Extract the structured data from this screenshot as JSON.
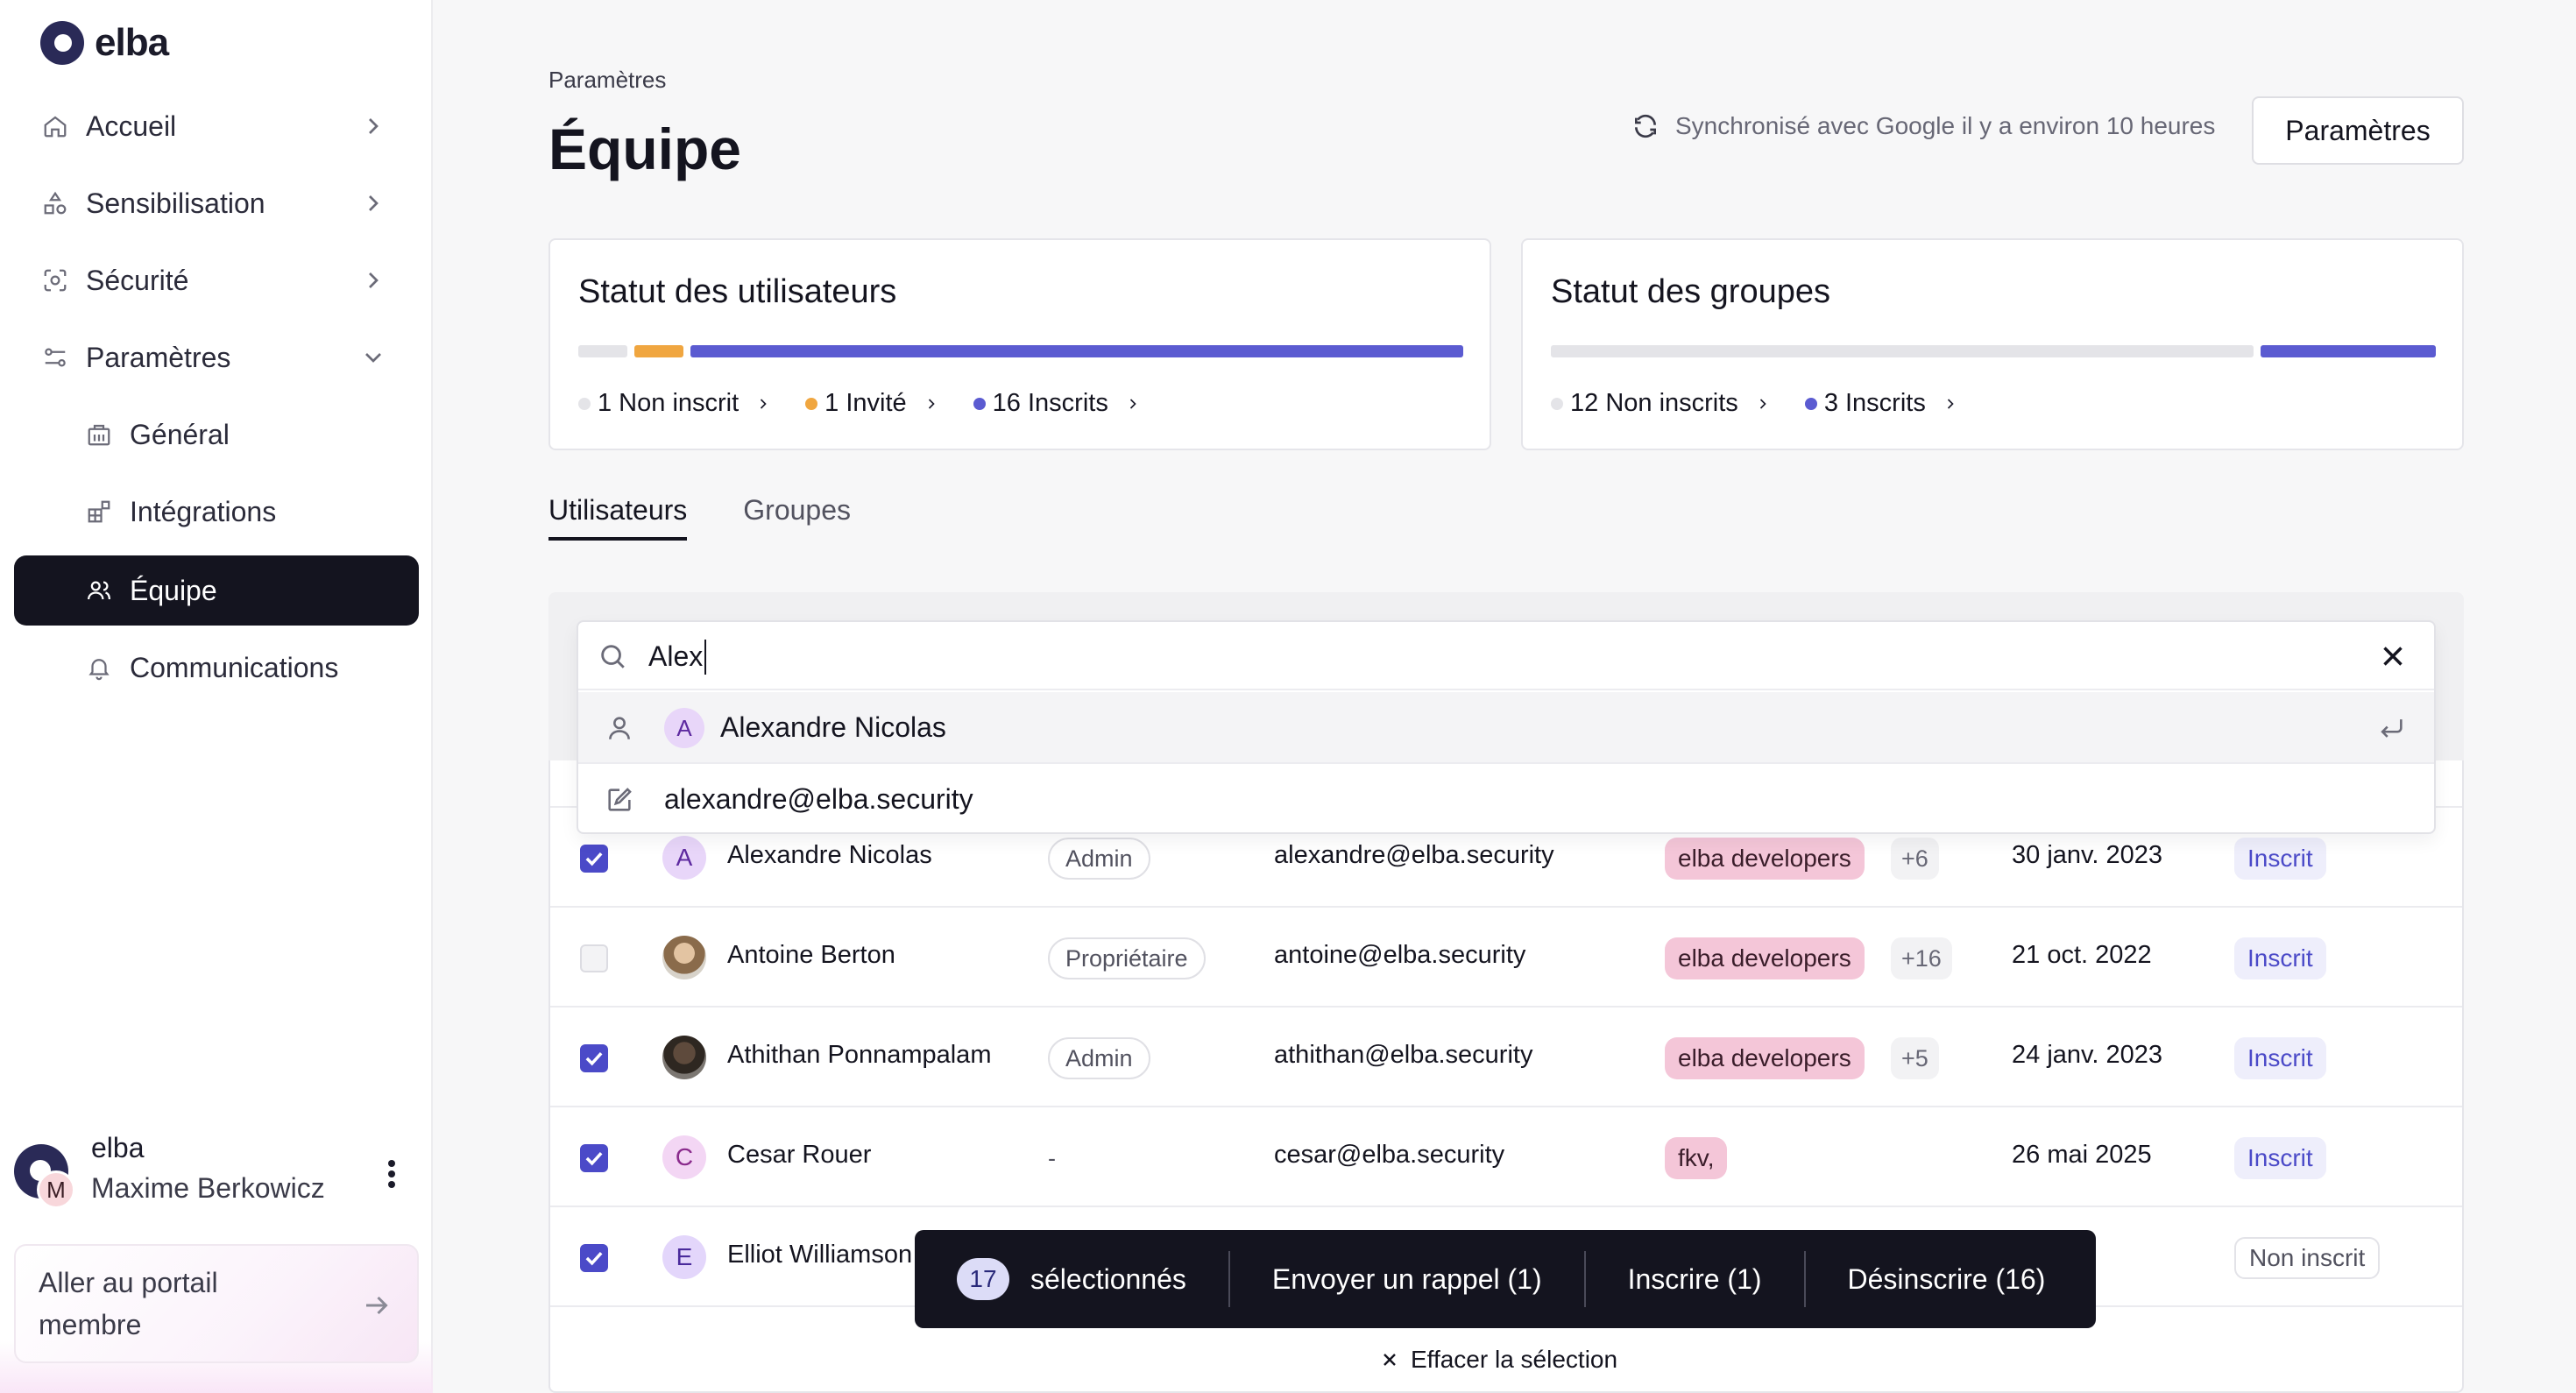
{
  "brand": {
    "name": "elba"
  },
  "sidebar": {
    "items": [
      {
        "label": "Accueil",
        "icon": "home-icon"
      },
      {
        "label": "Sensibilisation",
        "icon": "shapes-icon"
      },
      {
        "label": "Sécurité",
        "icon": "scan-icon"
      },
      {
        "label": "Paramètres",
        "icon": "sliders-icon",
        "expanded": true
      },
      {
        "label": "Général",
        "icon": "building-icon"
      },
      {
        "label": "Intégrations",
        "icon": "blocks-icon"
      },
      {
        "label": "Équipe",
        "icon": "users-icon",
        "active": true
      },
      {
        "label": "Communications",
        "icon": "bell-icon"
      }
    ],
    "user": {
      "org": "elba",
      "name": "Maxime Berkowicz",
      "initial": "M"
    },
    "portal": {
      "label": "Aller au portail membre"
    }
  },
  "header": {
    "breadcrumb": "Paramètres",
    "title": "Équipe",
    "sync_text": "Synchronisé avec Google il y a environ 10 heures",
    "settings_button": "Paramètres"
  },
  "user_status": {
    "title": "Statut des utilisateurs",
    "segments": [
      {
        "label": "1 Non inscrit",
        "count": 1,
        "color": "#e4e4e8"
      },
      {
        "label": "1 Invité",
        "count": 1,
        "color": "#f0a640"
      },
      {
        "label": "16 Inscrits",
        "count": 16,
        "color": "#5b5bd1"
      }
    ]
  },
  "group_status": {
    "title": "Statut des groupes",
    "segments": [
      {
        "label": "12 Non inscrits",
        "count": 12,
        "color": "#e4e4e8"
      },
      {
        "label": "3 Inscrits",
        "count": 3,
        "color": "#5b5bd1"
      }
    ]
  },
  "tabs": [
    {
      "label": "Utilisateurs",
      "active": true
    },
    {
      "label": "Groupes",
      "active": false
    }
  ],
  "search": {
    "value": "Alex",
    "suggestions": [
      {
        "initial": "A",
        "label": "Alexandre Nicolas"
      },
      {
        "label": "alexandre@elba.security"
      }
    ]
  },
  "users": [
    {
      "initial": "A",
      "name": "Alexandre Nicolas",
      "role": "Admin",
      "email": "alexandre@elba.security",
      "group": "elba developers",
      "more": "+6",
      "date": "30 janv. 2023",
      "status": "Inscrit",
      "checked": true
    },
    {
      "initial": "",
      "name": "Antoine Berton",
      "role": "Propriétaire",
      "email": "antoine@elba.security",
      "group": "elba developers",
      "more": "+16",
      "date": "21 oct. 2022",
      "status": "Inscrit",
      "checked": false
    },
    {
      "initial": "",
      "name": "Athithan Ponnampalam",
      "role": "Admin",
      "email": "athithan@elba.security",
      "group": "elba developers",
      "more": "+5",
      "date": "24 janv. 2023",
      "status": "Inscrit",
      "checked": true
    },
    {
      "initial": "C",
      "name": "Cesar Rouer",
      "role": "-",
      "email": "cesar@elba.security",
      "group": "fkv,",
      "more": "",
      "date": "26 mai 2025",
      "status": "Inscrit",
      "checked": true
    },
    {
      "initial": "E",
      "name": "Elliot Williamson",
      "role": "",
      "email": "",
      "group": "",
      "more": "",
      "date": "",
      "status": "Non inscrit",
      "checked": true
    }
  ],
  "action_bar": {
    "count": "17",
    "selected_label": "sélectionnés",
    "remind": "Envoyer un rappel (1)",
    "enroll": "Inscrire (1)",
    "unenroll": "Désinscrire (16)"
  },
  "clear_selection": "Effacer la sélection"
}
